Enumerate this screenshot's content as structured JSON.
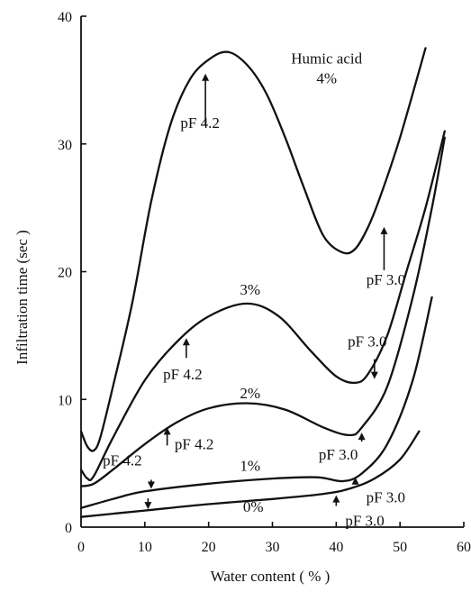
{
  "chart_data": {
    "type": "line",
    "title": "",
    "xlabel": "Water content ( % )",
    "ylabel": "Infiltration time (sec )",
    "xlim": [
      0,
      60
    ],
    "ylim": [
      0,
      40
    ],
    "x_ticks": [
      "0",
      "10",
      "20",
      "30",
      "40",
      "50",
      "60"
    ],
    "y_ticks": [
      "0",
      "10",
      "20",
      "30",
      "40"
    ],
    "grid": false,
    "legend": "none",
    "series": [
      {
        "name": "0%",
        "label": "0%",
        "x": [
          0,
          10,
          20,
          30,
          38,
          42,
          46,
          50,
          53
        ],
        "y": [
          0.8,
          1.3,
          1.8,
          2.2,
          2.6,
          3.0,
          3.8,
          5.3,
          7.5
        ]
      },
      {
        "name": "1%",
        "label": "1%",
        "x": [
          0,
          5,
          10,
          20,
          30,
          37,
          41,
          44,
          48,
          52,
          55
        ],
        "y": [
          1.5,
          2.2,
          2.8,
          3.4,
          3.8,
          3.9,
          3.6,
          4.2,
          6.5,
          11.5,
          18.0
        ]
      },
      {
        "name": "2%",
        "label": "2%",
        "x": [
          0,
          2,
          5,
          10,
          15,
          20,
          26,
          32,
          38,
          42,
          44,
          48,
          52,
          55,
          57
        ],
        "y": [
          3.2,
          3.4,
          4.5,
          6.5,
          8.2,
          9.3,
          9.7,
          9.2,
          7.8,
          7.2,
          7.8,
          11.0,
          18.0,
          25.0,
          30.5
        ]
      },
      {
        "name": "3%",
        "label": "3%",
        "x": [
          0,
          1,
          2,
          5,
          10,
          15,
          20,
          26,
          31,
          36,
          40,
          43,
          45,
          48,
          51,
          54,
          57
        ],
        "y": [
          4.5,
          3.8,
          4.0,
          7.0,
          11.5,
          14.5,
          16.5,
          17.5,
          16.5,
          13.8,
          11.8,
          11.3,
          12.0,
          15.0,
          20.0,
          25.0,
          31.0
        ]
      },
      {
        "name": "Humic acid 4%",
        "label": "Humic acid\n4%",
        "x": [
          0,
          1,
          2,
          3,
          5,
          8,
          11,
          14,
          17,
          20,
          23,
          26,
          29,
          32,
          35,
          38,
          41,
          43,
          45,
          47,
          50,
          54
        ],
        "y": [
          7.5,
          6.3,
          6.0,
          7.0,
          11.0,
          17.5,
          25.5,
          31.5,
          35.0,
          36.6,
          37.2,
          36.2,
          34.0,
          30.5,
          26.5,
          22.8,
          21.5,
          21.8,
          23.5,
          26.0,
          30.5,
          37.5
        ]
      }
    ],
    "annotations": [
      {
        "text": "pF 4.2",
        "series": "4%",
        "x": 19.5,
        "y": 35.5
      },
      {
        "text": "pF 3.0",
        "series": "4%",
        "x": 47.5,
        "y": 23.5
      },
      {
        "text": "pF 4.2",
        "series": "3%",
        "x": 16.5,
        "y": 14.8
      },
      {
        "text": "pF 3.0",
        "series": "3%",
        "x": 46,
        "y": 11.6
      },
      {
        "text": "pF 4.2",
        "series": "2%",
        "x": 13.5,
        "y": 7.8
      },
      {
        "text": "pF 3.0",
        "series": "2%",
        "x": 44,
        "y": 7.4
      },
      {
        "text": "pF 4.2",
        "series": "1%",
        "x": 11,
        "y": 3.0
      },
      {
        "text": "pF 3.0",
        "series": "1%",
        "x": 43,
        "y": 3.9
      },
      {
        "series": "0%",
        "x": 10.5,
        "y": 1.4
      },
      {
        "series": "0%",
        "x": 40,
        "y": 2.5
      }
    ]
  }
}
